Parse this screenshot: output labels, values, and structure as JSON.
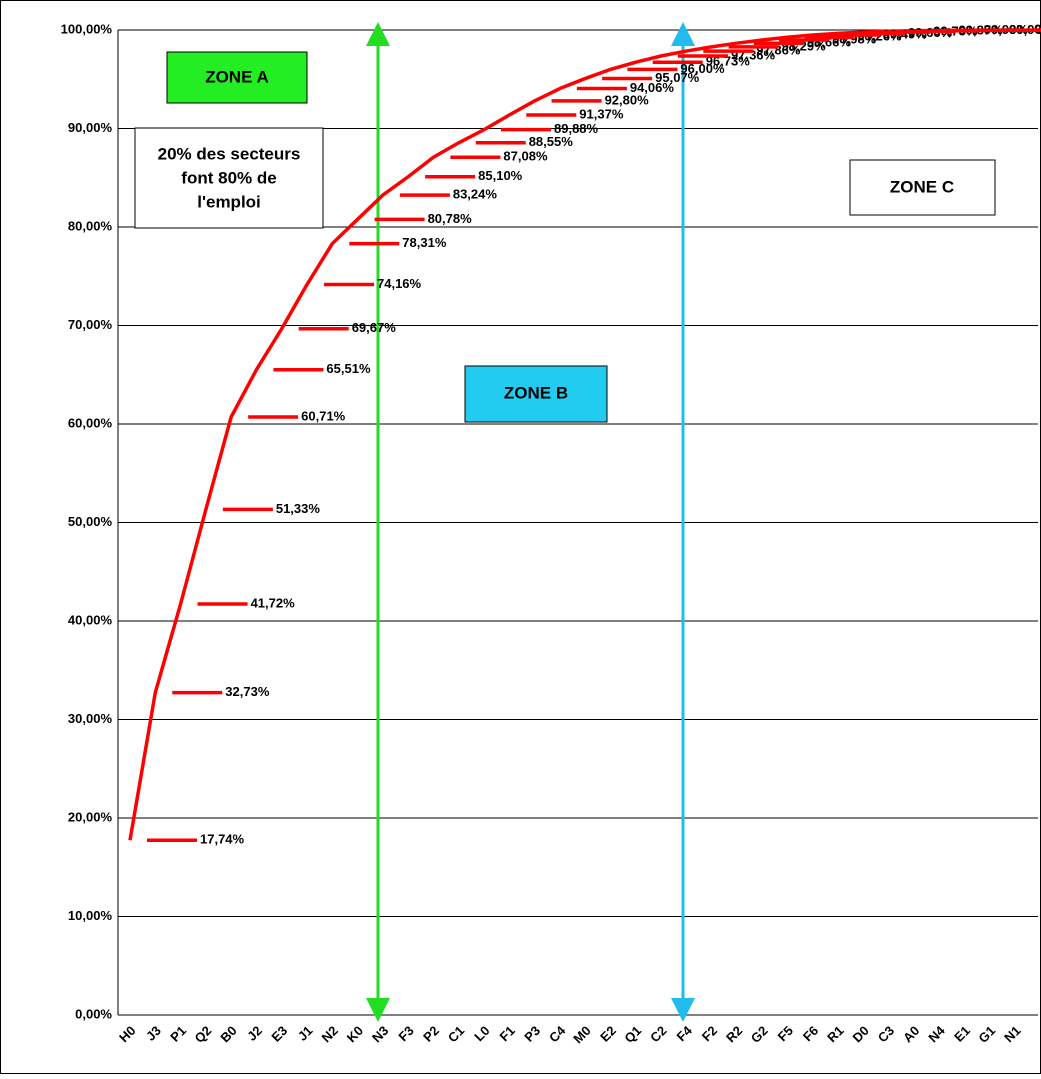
{
  "chart_data": {
    "type": "line",
    "categories": [
      "H0",
      "J3",
      "P1",
      "Q2",
      "B0",
      "J2",
      "E3",
      "J1",
      "N2",
      "K0",
      "N3",
      "F3",
      "P2",
      "C1",
      "L0",
      "F1",
      "P3",
      "C4",
      "M0",
      "E2",
      "Q1",
      "C2",
      "F4",
      "F2",
      "R2",
      "G2",
      "F5",
      "F6",
      "R1",
      "D0",
      "C3",
      "A0",
      "N4",
      "E1",
      "G1",
      "N1"
    ],
    "values": [
      17.74,
      32.73,
      41.72,
      51.33,
      60.71,
      65.51,
      69.67,
      74.16,
      78.31,
      80.78,
      83.24,
      85.1,
      87.08,
      88.55,
      89.88,
      91.37,
      92.8,
      94.06,
      95.07,
      96.0,
      96.73,
      97.36,
      97.86,
      98.29,
      98.66,
      98.98,
      99.26,
      99.49,
      99.66,
      99.78,
      99.87,
      99.93,
      99.96,
      99.98,
      99.99,
      100.0
    ],
    "value_labels": [
      "17,74%",
      "32,73%",
      "41,72%",
      "51,33%",
      "60,71%",
      "65,51%",
      "69,67%",
      "74,16%",
      "78,31%",
      "80,78%",
      "83,24%",
      "85,10%",
      "87,08%",
      "88,55%",
      "89,88%",
      "91,37%",
      "92,80%",
      "94,06%",
      "95,07%",
      "96,00%",
      "96,73%",
      "97,36%",
      "97,86%",
      "98,29%",
      "98,66%",
      "98,98%",
      "99,26%",
      "99,49%",
      "99,66%",
      "99,78%",
      "99,87%",
      "99,93%",
      "99,96%",
      "99,98%",
      "99,99%",
      "100,00%"
    ],
    "color": "#ff0000",
    "ylim": [
      0,
      100
    ],
    "yticks": [
      {
        "value": 0,
        "label": "0,00%"
      },
      {
        "value": 10,
        "label": "10,00%"
      },
      {
        "value": 20,
        "label": "20,00%"
      },
      {
        "value": 30,
        "label": "30,00%"
      },
      {
        "value": 40,
        "label": "40,00%"
      },
      {
        "value": 50,
        "label": "50,00%"
      },
      {
        "value": 60,
        "label": "60,00%"
      },
      {
        "value": 70,
        "label": "70,00%"
      },
      {
        "value": 80,
        "label": "80,00%"
      },
      {
        "value": 90,
        "label": "90,00%"
      },
      {
        "value": 100,
        "label": "100,00%"
      }
    ],
    "grid": true,
    "annotations": {
      "zone_a": "ZONE A",
      "zone_b": "ZONE B",
      "zone_c": "ZONE C",
      "note": [
        "20% des secteurs",
        "font 80% de",
        "l'emploi"
      ]
    }
  }
}
